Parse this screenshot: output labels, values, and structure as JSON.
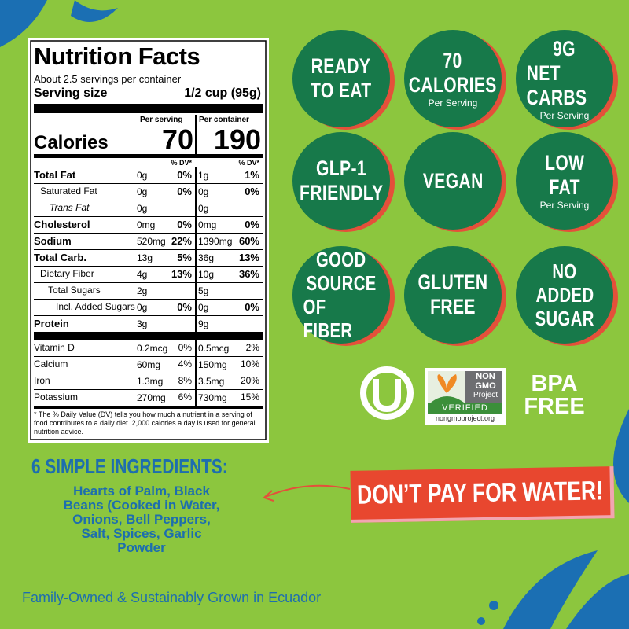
{
  "nutrition": {
    "title": "Nutrition Facts",
    "servings": "About 2.5 servings per container",
    "serving_size_label": "Serving size",
    "serving_size": "1/2 cup (95g)",
    "per_serving": "Per serving",
    "per_container": "Per container",
    "calories_label": "Calories",
    "calories": [
      70,
      190
    ],
    "dv_header": [
      "% DV*",
      "% DV*"
    ],
    "rows": [
      [
        "Total Fat",
        "0g",
        "0%",
        "1g",
        "1%"
      ],
      [
        "Saturated Fat",
        "0g",
        "0%",
        "0g",
        "0%"
      ],
      [
        "Trans Fat",
        "0g",
        null,
        "0g",
        null
      ],
      [
        "Cholesterol",
        "0mg",
        "0%",
        "0mg",
        "0%"
      ],
      [
        "Sodium",
        "520mg",
        "22%",
        "1390mg",
        "60%"
      ],
      [
        "Total Carb.",
        "13g",
        "5%",
        "36g",
        "13%"
      ],
      [
        "Dietary Fiber",
        "4g",
        "13%",
        "10g",
        "36%"
      ],
      [
        "Total Sugars",
        "2g",
        null,
        "5g",
        null
      ],
      [
        "Incl. Added Sugars",
        "0g",
        "0%",
        "0g",
        "0%"
      ],
      [
        "Protein",
        "3g",
        null,
        "9g",
        null
      ]
    ],
    "vitamins": [
      [
        "Vitamin D",
        "0.2mcg",
        "0%",
        "0.5mcg",
        "2%"
      ],
      [
        "Calcium",
        "60mg",
        "4%",
        "150mg",
        "10%"
      ],
      [
        "Iron",
        "1.3mg",
        "8%",
        "3.5mg",
        "20%"
      ],
      [
        "Potassium",
        "270mg",
        "6%",
        "730mg",
        "15%"
      ]
    ],
    "footnote": "* The % Daily Value (DV) tells you how much a nutrient in a serving of food contributes to a daily diet. 2,000 calories a day is used for general nutrition advice."
  },
  "badges": [
    {
      "lines": [
        "READY",
        "TO EAT"
      ]
    },
    {
      "lines": [
        "70",
        "CALORIES"
      ],
      "note": "Per Serving"
    },
    {
      "lines": [
        "9G",
        "NET CARBS"
      ],
      "note": "Per Serving"
    },
    {
      "lines": [
        "GLP-1",
        "FRIENDLY"
      ]
    },
    {
      "lines": [
        "VEGAN"
      ]
    },
    {
      "lines": [
        "LOW",
        "FAT"
      ],
      "note": "Per Serving"
    },
    {
      "lines": [
        "GOOD",
        "SOURCE",
        "OF FIBER"
      ]
    },
    {
      "lines": [
        "GLUTEN",
        "FREE"
      ]
    },
    {
      "lines": [
        "NO",
        "ADDED",
        "SUGAR"
      ]
    }
  ],
  "nongmo": {
    "lines": [
      "NON",
      "GMO",
      "Project"
    ],
    "verified": "VERIFIED",
    "url": "nongmoproject.org"
  },
  "bpa": [
    "BPA",
    "FREE"
  ],
  "ingredients": {
    "title": "6 SIMPLE INGREDIENTS:",
    "lines": [
      "Hearts of Palm, Black",
      "Beans (Cooked in Water,",
      "Onions, Bell Peppers,",
      "Salt, Spices, Garlic",
      "Powder"
    ]
  },
  "banner": "DON’T PAY FOR WATER!",
  "footer": "Family-Owned & Sustainably Grown in Ecuador"
}
